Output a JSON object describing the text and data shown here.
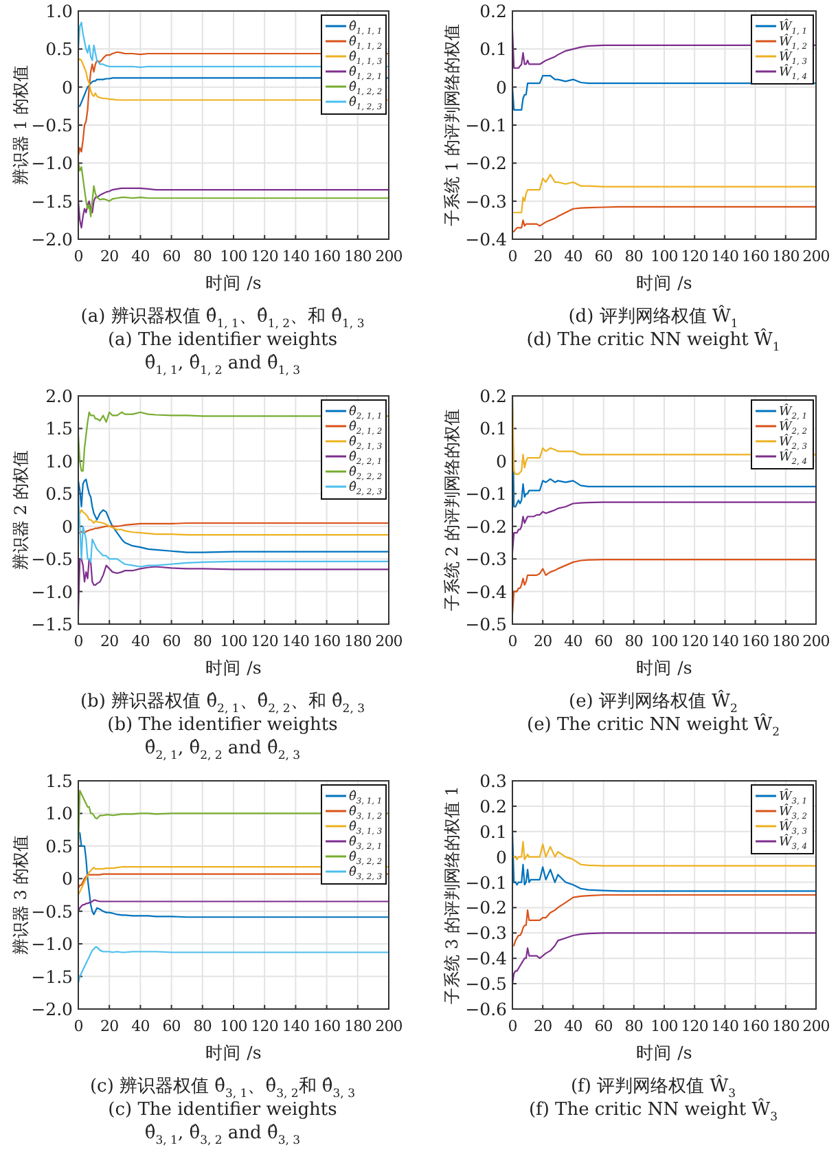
{
  "chart_data": [
    {
      "type": "line",
      "xlabel": "时间 /s",
      "ylabel": "辨识器 1 的权值",
      "grid": true,
      "legend": "top right",
      "xlim": [
        0,
        200
      ],
      "xticks": [
        0,
        20,
        40,
        60,
        80,
        100,
        120,
        140,
        160,
        180,
        200
      ],
      "ylim": [
        -2,
        1
      ],
      "yticks": [
        {
          "value": -2,
          "label": "−2.0"
        },
        {
          "value": -1.5,
          "label": "−1.5"
        },
        {
          "value": -1,
          "label": "−1.0"
        },
        {
          "value": -0.5,
          "label": "−0.5"
        },
        0,
        0.5,
        {
          "value": 1,
          "label": "1.0"
        }
      ],
      "x": [
        0,
        1,
        2,
        3,
        4,
        5,
        6,
        7,
        8,
        9,
        10,
        11,
        12,
        14,
        16,
        18,
        20,
        22,
        25,
        28,
        30,
        35,
        40,
        45,
        50,
        60,
        70,
        80,
        100,
        120,
        150,
        200
      ],
      "series": [
        {
          "name": "θ̂$_{1, 1, 1}$",
          "color": "#0072bd",
          "values": [
            -0.25,
            -0.25,
            -0.2,
            -0.15,
            -0.1,
            -0.05,
            0,
            0.02,
            0.05,
            0.07,
            0.08,
            0.08,
            0.1,
            0.1,
            0.1,
            0.11,
            0.11,
            0.12,
            0.12,
            0.12,
            0.12,
            0.12,
            0.12,
            0.12,
            0.12,
            0.12,
            0.12,
            0.12,
            0.12,
            0.12,
            0.12,
            0.12
          ]
        },
        {
          "name": "θ̂$_{1, 1, 2}$",
          "color": "#d95319",
          "values": [
            -0.9,
            -0.8,
            -0.85,
            -0.7,
            -0.5,
            -0.45,
            -0.3,
            0,
            0.2,
            0.3,
            0.2,
            0.3,
            0.35,
            0.33,
            0.38,
            0.42,
            0.42,
            0.44,
            0.46,
            0.45,
            0.44,
            0.44,
            0.43,
            0.44,
            0.44,
            0.44,
            0.44,
            0.44,
            0.44,
            0.44,
            0.44,
            0.44
          ]
        },
        {
          "name": "θ̂$_{1, 1, 3}$",
          "color": "#edb120",
          "values": [
            0.35,
            0.37,
            0.35,
            0.3,
            0.25,
            0.2,
            0.1,
            0.05,
            -0.05,
            -0.1,
            -0.12,
            -0.08,
            -0.12,
            -0.14,
            -0.15,
            -0.15,
            -0.16,
            -0.16,
            -0.17,
            -0.17,
            -0.17,
            -0.17,
            -0.17,
            -0.17,
            -0.17,
            -0.17,
            -0.17,
            -0.17,
            -0.17,
            -0.17,
            -0.17,
            -0.17
          ]
        },
        {
          "name": "θ̂$_{1, 2, 1}$",
          "color": "#7e2f8e",
          "values": [
            -1.5,
            -1.75,
            -1.85,
            -1.7,
            -1.6,
            -1.65,
            -1.55,
            -1.5,
            -1.6,
            -1.65,
            -1.5,
            -1.45,
            -1.45,
            -1.42,
            -1.4,
            -1.38,
            -1.37,
            -1.35,
            -1.34,
            -1.33,
            -1.33,
            -1.33,
            -1.33,
            -1.34,
            -1.35,
            -1.35,
            -1.35,
            -1.35,
            -1.35,
            -1.35,
            -1.35,
            -1.35
          ]
        },
        {
          "name": "θ̂$_{1, 2, 2}$",
          "color": "#77ac30",
          "values": [
            -1,
            -1.1,
            -1.05,
            -1.2,
            -1.35,
            -1.5,
            -1.6,
            -1.55,
            -1.7,
            -1.5,
            -1.3,
            -1.4,
            -1.45,
            -1.48,
            -1.47,
            -1.48,
            -1.5,
            -1.47,
            -1.46,
            -1.45,
            -1.45,
            -1.46,
            -1.45,
            -1.46,
            -1.46,
            -1.46,
            -1.46,
            -1.46,
            -1.46,
            -1.46,
            -1.46,
            -1.46
          ]
        },
        {
          "name": "θ̂$_{1, 2, 3}$",
          "color": "#4dbeee",
          "values": [
            0.5,
            0.8,
            0.85,
            0.7,
            0.6,
            0.5,
            0.45,
            0.55,
            0.4,
            0.35,
            0.55,
            0.45,
            0.35,
            0.3,
            0.3,
            0.28,
            0.27,
            0.27,
            0.27,
            0.27,
            0.27,
            0.27,
            0.26,
            0.27,
            0.27,
            0.27,
            0.27,
            0.27,
            0.27,
            0.27,
            0.27,
            0.27
          ]
        }
      ],
      "annotations": [
        "(a) 辨识器权值 θ̂$_{1, 1}$、θ̂$_{1, 2}$、和 θ̂$_{1, 3}$",
        "(a) The identifier weights",
        "θ̂$_{1, 1}$, θ̂$_{1, 2}$ and θ̂$_{1, 3}$"
      ]
    },
    {
      "type": "line",
      "xlabel": "时间 /s",
      "ylabel": "子系统 1 的评判网络的权值",
      "grid": true,
      "legend": "top right",
      "xlim": [
        0,
        200
      ],
      "xticks": [
        0,
        20,
        40,
        60,
        80,
        100,
        120,
        140,
        160,
        180,
        200
      ],
      "ylim": [
        -0.4,
        0.2
      ],
      "yticks": [
        {
          "value": -0.4,
          "label": "−0.4"
        },
        {
          "value": -0.3,
          "label": "−0.3"
        },
        {
          "value": -0.2,
          "label": "−0.2"
        },
        {
          "value": -0.1,
          "label": "−0.1"
        },
        0,
        0.1,
        0.2
      ],
      "x": [
        0,
        1,
        2,
        3,
        4,
        5,
        6,
        7,
        8,
        9,
        10,
        11,
        12,
        14,
        16,
        18,
        20,
        22,
        25,
        28,
        30,
        35,
        40,
        45,
        50,
        60,
        70,
        80,
        100,
        120,
        150,
        200
      ],
      "series": [
        {
          "name": "Ŵ$_{1, 1}$",
          "color": "#0072bd",
          "values": [
            0,
            -0.06,
            -0.06,
            -0.06,
            -0.06,
            -0.06,
            -0.06,
            -0.03,
            -0.02,
            -0.02,
            0.01,
            0.01,
            0.01,
            0.01,
            0.01,
            0.01,
            0.03,
            0.03,
            0.03,
            0.02,
            0.02,
            0.015,
            0.02,
            0.012,
            0.01,
            0.01,
            0.01,
            0.01,
            0.01,
            0.01,
            0.01,
            0.01
          ]
        },
        {
          "name": "Ŵ$_{1, 2}$",
          "color": "#d95319",
          "values": [
            -0.38,
            -0.38,
            -0.375,
            -0.37,
            -0.37,
            -0.37,
            -0.37,
            -0.35,
            -0.365,
            -0.36,
            -0.36,
            -0.36,
            -0.36,
            -0.36,
            -0.36,
            -0.365,
            -0.36,
            -0.355,
            -0.35,
            -0.345,
            -0.34,
            -0.33,
            -0.32,
            -0.318,
            -0.317,
            -0.316,
            -0.315,
            -0.315,
            -0.315,
            -0.315,
            -0.315,
            -0.315
          ]
        },
        {
          "name": "Ŵ$_{1, 3}$",
          "color": "#edb120",
          "values": [
            null,
            -0.33,
            -0.33,
            -0.33,
            -0.33,
            -0.33,
            -0.33,
            -0.29,
            -0.3,
            -0.28,
            -0.27,
            -0.27,
            -0.27,
            -0.27,
            -0.27,
            -0.27,
            -0.24,
            -0.25,
            -0.23,
            -0.25,
            -0.25,
            -0.255,
            -0.25,
            -0.26,
            -0.26,
            -0.262,
            -0.262,
            -0.262,
            -0.262,
            -0.262,
            -0.262,
            -0.262
          ]
        },
        {
          "name": "Ŵ$_{1, 4}$",
          "color": "#7e2f8e",
          "values": [
            0.15,
            0.05,
            0.05,
            0.05,
            0.05,
            0.055,
            0.06,
            0.09,
            0.06,
            0.06,
            0.07,
            0.06,
            0.06,
            0.06,
            0.06,
            0.06,
            0.065,
            0.07,
            0.075,
            0.08,
            0.085,
            0.095,
            0.1,
            0.105,
            0.108,
            0.11,
            0.11,
            0.11,
            0.11,
            0.11,
            0.11,
            0.11
          ]
        }
      ],
      "annotations": [
        "(d) 评判网络权值 Ŵ$_{1}$",
        "(d) The critic NN weight Ŵ$_{1}$"
      ]
    },
    {
      "type": "line",
      "xlabel": "时间 /s",
      "ylabel": "辨识器 2 的权值",
      "grid": true,
      "legend": "top right",
      "xlim": [
        0,
        200
      ],
      "xticks": [
        0,
        20,
        40,
        60,
        80,
        100,
        120,
        140,
        160,
        180,
        200
      ],
      "ylim": [
        -1.5,
        2
      ],
      "yticks": [
        {
          "value": -1.5,
          "label": "−1.5"
        },
        {
          "value": -1,
          "label": "−1.0"
        },
        {
          "value": -0.5,
          "label": "−0.5"
        },
        0,
        0.5,
        {
          "value": 1,
          "label": "1.0"
        },
        1.5,
        {
          "value": 2,
          "label": "2.0"
        }
      ],
      "x": [
        0,
        1,
        2,
        3,
        4,
        5,
        6,
        7,
        8,
        9,
        10,
        11,
        12,
        14,
        16,
        18,
        20,
        22,
        25,
        28,
        30,
        35,
        40,
        45,
        50,
        60,
        70,
        80,
        100,
        120,
        150,
        200
      ],
      "series": [
        {
          "name": "θ̂$_{2, 1, 1}$",
          "color": "#0072bd",
          "values": [
            0.7,
            0.55,
            0.3,
            0.65,
            0.7,
            0.72,
            0.6,
            0.5,
            0.45,
            0.3,
            0.2,
            0.15,
            0.1,
            0.2,
            0.25,
            0.22,
            0.1,
            0,
            -0.1,
            -0.2,
            -0.25,
            -0.3,
            -0.32,
            -0.35,
            -0.36,
            -0.38,
            -0.4,
            -0.4,
            -0.39,
            -0.39,
            -0.39,
            -0.39
          ]
        },
        {
          "name": "θ̂$_{2, 1, 2}$",
          "color": "#d95319",
          "values": [
            -0.1,
            -0.1,
            -0.08,
            -0.1,
            -0.1,
            -0.08,
            -0.07,
            -0.06,
            -0.05,
            -0.05,
            -0.04,
            -0.03,
            -0.03,
            -0.02,
            -0.01,
            0,
            0,
            0,
            0,
            0.01,
            0.02,
            0.03,
            0.04,
            0.04,
            0.04,
            0.04,
            0.05,
            0.05,
            0.05,
            0.05,
            0.05,
            0.05
          ]
        },
        {
          "name": "θ̂$_{2, 1, 3}$",
          "color": "#edb120",
          "values": [
            null,
            0.2,
            0.25,
            0.22,
            0.2,
            0.18,
            0.15,
            0.1,
            0.1,
            0.08,
            0.05,
            0.08,
            0.07,
            0.06,
            0.05,
            0.03,
            0,
            -0.02,
            -0.05,
            -0.05,
            -0.07,
            -0.09,
            -0.1,
            -0.11,
            -0.12,
            -0.12,
            -0.13,
            -0.13,
            -0.13,
            -0.13,
            -0.13,
            -0.13
          ]
        },
        {
          "name": "θ̂$_{2, 2, 1}$",
          "color": "#7e2f8e",
          "values": [
            -1.3,
            -0.5,
            -0.5,
            -0.6,
            -0.85,
            -0.7,
            -0.8,
            -0.5,
            -0.55,
            -0.85,
            -0.9,
            -0.9,
            -0.88,
            -0.85,
            -0.75,
            -0.6,
            -0.65,
            -0.7,
            -0.72,
            -0.7,
            -0.68,
            -0.68,
            -0.65,
            -0.63,
            -0.62,
            -0.64,
            -0.65,
            -0.65,
            -0.66,
            -0.66,
            -0.66,
            -0.66
          ]
        },
        {
          "name": "θ̂$_{2, 2, 2}$",
          "color": "#77ac30",
          "values": [
            1.4,
            1,
            0.85,
            0.85,
            1.2,
            1.4,
            1.6,
            1.75,
            1.7,
            1.7,
            1.7,
            1.65,
            1.65,
            1.62,
            1.7,
            1.6,
            1.75,
            1.7,
            1.7,
            1.75,
            1.72,
            1.72,
            1.75,
            1.72,
            1.71,
            1.7,
            1.7,
            1.69,
            1.69,
            1.69,
            1.69,
            1.69
          ]
        },
        {
          "name": "θ̂$_{2, 2, 3}$",
          "color": "#4dbeee",
          "values": [
            0.5,
            0,
            -0.5,
            0,
            -0.1,
            -0.2,
            -0.5,
            -0.5,
            -0.55,
            -0.2,
            -0.25,
            -0.3,
            -0.35,
            -0.4,
            -0.45,
            -0.45,
            -0.5,
            -0.5,
            -0.5,
            -0.55,
            -0.58,
            -0.6,
            -0.62,
            -0.6,
            -0.6,
            -0.58,
            -0.56,
            -0.55,
            -0.54,
            -0.54,
            -0.54,
            -0.54
          ]
        }
      ],
      "annotations": [
        "(b) 辨识器权值 θ̂$_{2, 1}$、θ̂$_{2, 2}$、和 θ̂$_{2, 3}$",
        "(b) The identifier weights",
        "θ̂$_{2, 1}$, θ̂$_{2, 2}$ and θ̂$_{2, 3}$"
      ]
    },
    {
      "type": "line",
      "xlabel": "时间 /s",
      "ylabel": "子系统 2 的评判网络的权值",
      "grid": true,
      "legend": "top right",
      "xlim": [
        0,
        200
      ],
      "xticks": [
        0,
        20,
        40,
        60,
        80,
        100,
        120,
        140,
        160,
        180,
        200
      ],
      "ylim": [
        -0.5,
        0.2
      ],
      "yticks": [
        {
          "value": -0.5,
          "label": "−0.5"
        },
        {
          "value": -0.4,
          "label": "−0.4"
        },
        {
          "value": -0.3,
          "label": "−0.3"
        },
        {
          "value": -0.2,
          "label": "−0.2"
        },
        {
          "value": -0.1,
          "label": "−0.1"
        },
        0,
        0.1,
        0.2
      ],
      "x": [
        0,
        1,
        2,
        3,
        4,
        5,
        6,
        7,
        8,
        9,
        10,
        11,
        12,
        14,
        16,
        18,
        20,
        22,
        25,
        28,
        30,
        35,
        40,
        45,
        50,
        60,
        70,
        80,
        100,
        120,
        150,
        200
      ],
      "series": [
        {
          "name": "Ŵ$_{2, 1}$",
          "color": "#0072bd",
          "values": [
            0.2,
            -0.14,
            -0.14,
            -0.13,
            -0.12,
            -0.13,
            -0.12,
            -0.07,
            -0.11,
            -0.1,
            -0.1,
            -0.09,
            -0.09,
            -0.09,
            -0.09,
            -0.09,
            -0.06,
            -0.065,
            -0.055,
            -0.065,
            -0.06,
            -0.065,
            -0.06,
            -0.075,
            -0.078,
            -0.078,
            -0.078,
            -0.078,
            -0.078,
            -0.078,
            -0.078,
            -0.078
          ]
        },
        {
          "name": "Ŵ$_{2, 2}$",
          "color": "#d95319",
          "values": [
            -0.47,
            -0.4,
            -0.4,
            -0.4,
            -0.39,
            -0.39,
            -0.38,
            -0.36,
            -0.38,
            -0.37,
            -0.35,
            -0.35,
            -0.35,
            -0.35,
            -0.35,
            -0.345,
            -0.33,
            -0.35,
            -0.34,
            -0.335,
            -0.33,
            -0.32,
            -0.31,
            -0.305,
            -0.303,
            -0.302,
            -0.302,
            -0.302,
            -0.302,
            -0.302,
            -0.302,
            -0.302
          ]
        },
        {
          "name": "Ŵ$_{2, 3}$",
          "color": "#edb120",
          "values": [
            0.2,
            -0.03,
            -0.04,
            -0.04,
            -0.04,
            -0.035,
            -0.03,
            0.02,
            -0.02,
            0,
            0.01,
            0.01,
            0.01,
            0.01,
            0.01,
            0.01,
            0.04,
            0.03,
            0.04,
            0.035,
            0.03,
            0.03,
            0.03,
            0.02,
            0.02,
            0.02,
            0.02,
            0.02,
            0.02,
            0.02,
            0.02,
            0.02
          ]
        },
        {
          "name": "Ŵ$_{2, 4}$",
          "color": "#7e2f8e",
          "values": [
            -0.28,
            -0.22,
            -0.22,
            -0.22,
            -0.21,
            -0.21,
            -0.2,
            -0.17,
            -0.19,
            -0.18,
            -0.17,
            -0.17,
            -0.17,
            -0.17,
            -0.165,
            -0.165,
            -0.155,
            -0.16,
            -0.155,
            -0.15,
            -0.145,
            -0.14,
            -0.13,
            -0.128,
            -0.127,
            -0.126,
            -0.126,
            -0.126,
            -0.126,
            -0.126,
            -0.126,
            -0.126
          ]
        }
      ],
      "annotations": [
        "(e) 评判网络权值 Ŵ$_{2}$",
        "(e) The critic NN weight Ŵ$_{2}$"
      ]
    },
    {
      "type": "line",
      "xlabel": "时间 /s",
      "ylabel": "辨识器 3 的权值",
      "grid": true,
      "legend": "top right",
      "xlim": [
        0,
        200
      ],
      "xticks": [
        0,
        20,
        40,
        60,
        80,
        100,
        120,
        140,
        160,
        180,
        200
      ],
      "ylim": [
        -2,
        1.5
      ],
      "yticks": [
        {
          "value": -2,
          "label": "−2.0"
        },
        {
          "value": -1.5,
          "label": "−1.5"
        },
        {
          "value": -1,
          "label": "−1.0"
        },
        {
          "value": -0.5,
          "label": "−0.5"
        },
        0,
        0.5,
        {
          "value": 1,
          "label": "1.0"
        },
        1.5
      ],
      "x": [
        0,
        1,
        2,
        3,
        4,
        5,
        6,
        7,
        8,
        9,
        10,
        11,
        12,
        14,
        16,
        18,
        20,
        22,
        25,
        28,
        30,
        35,
        40,
        45,
        50,
        60,
        70,
        80,
        100,
        120,
        150,
        200
      ],
      "series": [
        {
          "name": "θ̂$_{3, 1, 1}$",
          "color": "#0072bd",
          "values": [
            0.7,
            0.7,
            0.5,
            0.5,
            0.5,
            0.3,
            0,
            -0.2,
            -0.4,
            -0.5,
            -0.55,
            -0.5,
            -0.45,
            -0.47,
            -0.5,
            -0.52,
            -0.52,
            -0.53,
            -0.55,
            -0.56,
            -0.56,
            -0.57,
            -0.57,
            -0.57,
            -0.58,
            -0.58,
            -0.59,
            -0.59,
            -0.59,
            -0.59,
            -0.59,
            -0.59
          ]
        },
        {
          "name": "θ̂$_{3, 1, 2}$",
          "color": "#d95319",
          "values": [
            -0.15,
            -0.1,
            -0.1,
            -0.05,
            0,
            0.03,
            0.05,
            0.06,
            0.06,
            0.06,
            0.06,
            0.06,
            0.06,
            0.06,
            0.07,
            0.07,
            0.07,
            0.07,
            0.07,
            0.07,
            0.07,
            0.07,
            0.07,
            0.07,
            0.07,
            0.07,
            0.07,
            0.07,
            0.07,
            0.07,
            0.07,
            0.07
          ]
        },
        {
          "name": "θ̂$_{3, 1, 3}$",
          "color": "#edb120",
          "values": [
            -0.25,
            -0.2,
            -0.15,
            -0.1,
            -0.05,
            0,
            0.05,
            0.1,
            0.12,
            0.15,
            0.17,
            0.15,
            0.15,
            0.15,
            0.15,
            0.16,
            0.16,
            0.16,
            0.17,
            0.18,
            0.18,
            0.18,
            0.18,
            0.18,
            0.18,
            0.18,
            0.18,
            0.18,
            0.18,
            0.18,
            0.18,
            0.18
          ]
        },
        {
          "name": "θ̂$_{3, 2, 1}$",
          "color": "#7e2f8e",
          "values": [
            -0.5,
            -0.45,
            -0.42,
            -0.4,
            -0.4,
            -0.38,
            -0.38,
            -0.37,
            -0.36,
            -0.35,
            -0.33,
            -0.33,
            -0.34,
            -0.35,
            -0.35,
            -0.35,
            -0.35,
            -0.35,
            -0.35,
            -0.35,
            -0.35,
            -0.35,
            -0.35,
            -0.35,
            -0.35,
            -0.35,
            -0.35,
            -0.35,
            -0.35,
            -0.35,
            -0.35,
            -0.35
          ]
        },
        {
          "name": "θ̂$_{3, 2, 2}$",
          "color": "#77ac30",
          "values": [
            0.5,
            1.35,
            1.3,
            1.25,
            1.2,
            1.15,
            1.1,
            1.1,
            1,
            1,
            0.97,
            0.93,
            0.92,
            0.97,
            0.97,
            0.98,
            0.98,
            0.97,
            0.98,
            0.99,
            0.99,
            0.99,
            1,
            1,
            0.99,
            1,
            1,
            1,
            1,
            1,
            1,
            1
          ]
        },
        {
          "name": "θ̂$_{3, 2, 3}$",
          "color": "#4dbeee",
          "values": [
            -1.6,
            -1.5,
            -1.45,
            -1.4,
            -1.35,
            -1.3,
            -1.25,
            -1.2,
            -1.15,
            -1.1,
            -1.08,
            -1.05,
            -1.05,
            -1.1,
            -1.12,
            -1.12,
            -1.12,
            -1.13,
            -1.12,
            -1.13,
            -1.13,
            -1.12,
            -1.12,
            -1.12,
            -1.12,
            -1.13,
            -1.13,
            -1.13,
            -1.13,
            -1.13,
            -1.13,
            -1.13
          ]
        }
      ],
      "annotations": [
        "(c) 辨识器权值 θ̂$_{3, 1}$、θ̂$_{3, 2}$和 θ̂$_{3, 3}$",
        "(c) The identifier weights",
        "θ̂$_{3, 1}$, θ̂$_{3, 2}$ and θ̂$_{3, 3}$"
      ]
    },
    {
      "type": "line",
      "xlabel": "时间 /s",
      "ylabel": "子系统 3 的评判网络的权值 1",
      "grid": true,
      "legend": "top right",
      "xlim": [
        0,
        200
      ],
      "xticks": [
        0,
        20,
        40,
        60,
        80,
        100,
        120,
        140,
        160,
        180,
        200
      ],
      "ylim": [
        -0.6,
        0.3
      ],
      "yticks": [
        {
          "value": -0.6,
          "label": "−0.6"
        },
        {
          "value": -0.5,
          "label": "−0.5"
        },
        {
          "value": -0.4,
          "label": "−0.4"
        },
        {
          "value": -0.3,
          "label": "−0.3"
        },
        {
          "value": -0.2,
          "label": "−0.2"
        },
        {
          "value": -0.1,
          "label": "−0.1"
        },
        0,
        0.1,
        0.2,
        0.3
      ],
      "x": [
        0,
        1,
        2,
        3,
        4,
        5,
        6,
        7,
        8,
        9,
        10,
        11,
        12,
        14,
        16,
        18,
        20,
        22,
        25,
        28,
        30,
        35,
        40,
        45,
        50,
        60,
        70,
        80,
        100,
        120,
        150,
        200
      ],
      "series": [
        {
          "name": "Ŵ$_{3, 1}$",
          "color": "#0072bd",
          "values": [
            0.1,
            -0.1,
            -0.1,
            -0.11,
            -0.1,
            -0.1,
            -0.1,
            -0.03,
            -0.11,
            -0.1,
            -0.05,
            -0.1,
            -0.09,
            -0.09,
            -0.09,
            -0.09,
            -0.04,
            -0.09,
            -0.05,
            -0.1,
            -0.07,
            -0.1,
            -0.11,
            -0.125,
            -0.13,
            -0.133,
            -0.135,
            -0.135,
            -0.135,
            -0.135,
            -0.135,
            -0.135
          ]
        },
        {
          "name": "Ŵ$_{3, 2}$",
          "color": "#d95319",
          "values": [
            null,
            -0.35,
            -0.33,
            -0.32,
            -0.31,
            -0.31,
            -0.3,
            -0.28,
            -0.27,
            -0.27,
            -0.21,
            -0.25,
            -0.25,
            -0.25,
            -0.25,
            -0.25,
            -0.24,
            -0.24,
            -0.22,
            -0.21,
            -0.2,
            -0.18,
            -0.16,
            -0.155,
            -0.153,
            -0.15,
            -0.15,
            -0.15,
            -0.15,
            -0.15,
            -0.15,
            -0.15
          ]
        },
        {
          "name": "Ŵ$_{3, 3}$",
          "color": "#edb120",
          "values": [
            null,
            0,
            0,
            -0.01,
            0,
            0,
            0,
            0.06,
            -0.01,
            0,
            0.01,
            0,
            0,
            0,
            0,
            0,
            0.05,
            0,
            0.04,
            0,
            0.02,
            0,
            -0.01,
            -0.03,
            -0.033,
            -0.035,
            -0.035,
            -0.035,
            -0.035,
            -0.035,
            -0.035,
            -0.035
          ]
        },
        {
          "name": "Ŵ$_{3, 4}$",
          "color": "#7e2f8e",
          "values": [
            -0.5,
            -0.46,
            -0.45,
            -0.45,
            -0.44,
            -0.43,
            -0.42,
            -0.41,
            -0.4,
            -0.4,
            -0.36,
            -0.39,
            -0.39,
            -0.39,
            -0.39,
            -0.4,
            -0.39,
            -0.38,
            -0.37,
            -0.35,
            -0.33,
            -0.32,
            -0.31,
            -0.305,
            -0.302,
            -0.3,
            -0.3,
            -0.3,
            -0.3,
            -0.3,
            -0.3,
            -0.3
          ]
        }
      ],
      "annotations": [
        "(f) 评判网络权值 Ŵ$_{3}$",
        "(f) The critic NN weight Ŵ$_{3}$"
      ]
    }
  ]
}
